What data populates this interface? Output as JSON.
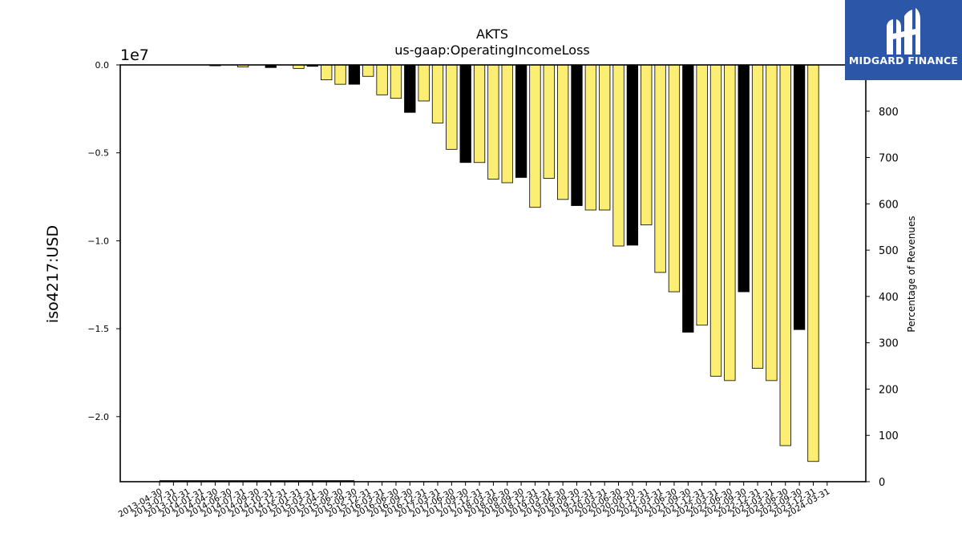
{
  "chart_data": {
    "type": "bar",
    "title": "AKTS",
    "subtitle": "us-gaap:OperatingIncomeLoss",
    "ylabel": "iso4217:USD",
    "y2label": "Percentage of Revenues",
    "y_offset_label": "1e7",
    "ylim": [
      -2.37,
      0.0
    ],
    "yticks": [
      0.0,
      -0.5,
      -1.0,
      -1.5,
      -2.0
    ],
    "ytick_labels": [
      "0.0",
      "−0.5",
      "−1.0",
      "−1.5",
      "−2.0"
    ],
    "y2lim": [
      0,
      900
    ],
    "y2ticks": [
      0,
      100,
      200,
      300,
      400,
      500,
      600,
      700,
      800
    ],
    "categories": [
      "2013-04-30",
      "2013-07-31",
      "2013-10-31",
      "2014-01-31",
      "2014-04-30",
      "2014-06-30",
      "2014-07-31",
      "2014-09-30",
      "2014-10-31",
      "2014-12-31",
      "2015-01-31",
      "2015-03-31",
      "2015-04-30",
      "2015-06-30",
      "2015-09-30",
      "2015-12-31",
      "2016-03-31",
      "2016-06-30",
      "2016-09-30",
      "2016-12-31",
      "2017-03-31",
      "2017-06-30",
      "2017-09-30",
      "2017-12-31",
      "2018-03-31",
      "2018-06-30",
      "2018-09-30",
      "2018-12-31",
      "2019-03-31",
      "2019-06-30",
      "2019-09-30",
      "2019-12-31",
      "2020-03-31",
      "2020-06-30",
      "2020-09-30",
      "2020-12-31",
      "2021-03-31",
      "2021-06-30",
      "2021-09-30",
      "2021-12-31",
      "2022-03-31",
      "2022-06-30",
      "2022-09-30",
      "2022-12-31",
      "2023-03-31",
      "2023-06-30",
      "2023-09-30",
      "2023-12-31",
      "2024-03-31"
    ],
    "values": [
      0.0,
      0.0,
      0.0,
      0.0,
      -0.005,
      0.0,
      -0.012,
      0.0,
      -0.015,
      0.0,
      -0.02,
      -0.008,
      -0.085,
      -0.11,
      -0.11,
      -0.065,
      -0.17,
      -0.19,
      -0.27,
      -0.205,
      -0.33,
      -0.48,
      -0.555,
      -0.555,
      -0.65,
      -0.67,
      -0.64,
      -0.81,
      -0.645,
      -0.765,
      -0.8,
      -0.825,
      -0.825,
      -1.03,
      -1.025,
      -0.91,
      -1.18,
      -1.29,
      -1.52,
      -1.48,
      -1.77,
      -1.795,
      -1.29,
      -1.725,
      -1.795,
      -2.165,
      -1.505,
      -2.255,
      0
    ],
    "bar_colors": [
      "#fced73",
      "#fced73",
      "#fced73",
      "#fced73",
      "#000000",
      "#fced73",
      "#fced73",
      "#fced73",
      "#000000",
      "#fced73",
      "#fced73",
      "#000000",
      "#fced73",
      "#fced73",
      "#000000",
      "#fced73",
      "#fced73",
      "#fced73",
      "#000000",
      "#fced73",
      "#fced73",
      "#fced73",
      "#000000",
      "#fced73",
      "#fced73",
      "#fced73",
      "#000000",
      "#fced73",
      "#fced73",
      "#fced73",
      "#000000",
      "#fced73",
      "#fced73",
      "#fced73",
      "#000000",
      "#fced73",
      "#fced73",
      "#fced73",
      "#000000",
      "#fced73",
      "#fced73",
      "#fced73",
      "#000000",
      "#fced73",
      "#fced73",
      "#fced73",
      "#000000",
      "#fced73",
      "#fced73"
    ],
    "percent_line": {
      "color": "#000000",
      "values": [
        0,
        0,
        0,
        0,
        0,
        0,
        0,
        0,
        0,
        0,
        0,
        0,
        0,
        0,
        0,
        null,
        null,
        0,
        null,
        null,
        null,
        null,
        null,
        null,
        null,
        null,
        null,
        null,
        null,
        null,
        null,
        null,
        null,
        null,
        null,
        null,
        null,
        null,
        null,
        null,
        null,
        null,
        null,
        null,
        null,
        null,
        null,
        null,
        null
      ]
    },
    "grid": false,
    "colors": {
      "bar_fill": "#fced73",
      "bar_alt": "#000000",
      "edge": "#000000"
    }
  },
  "logo": {
    "text": "MIDGARD FINANCE",
    "background": "#2c57a8"
  }
}
